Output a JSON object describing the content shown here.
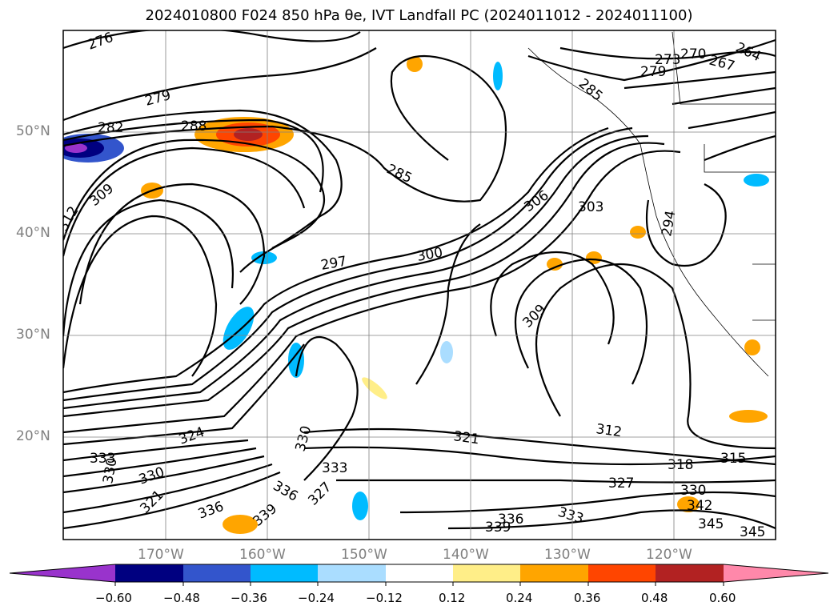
{
  "title": "2024010800 F024 850 hPa θe, IVT Landfall PC (2024011012 - 2024011100)",
  "lat_labels": [
    "50°N",
    "40°N",
    "30°N",
    "20°N"
  ],
  "lon_labels": [
    "170°W",
    "160°W",
    "150°W",
    "140°W",
    "130°W",
    "120°W"
  ],
  "colorbar": {
    "ticks": [
      "−0.60",
      "−0.48",
      "−0.36",
      "−0.24",
      "−0.12",
      "0.12",
      "0.24",
      "0.36",
      "0.48",
      "0.60"
    ],
    "colors": [
      "#9933cc",
      "#000080",
      "#3355cc",
      "#00bbff",
      "#aaddff",
      "#ffffff",
      "#ffee88",
      "#ffa500",
      "#ff4500",
      "#b22222",
      "#ff88aa"
    ]
  },
  "contour_labels": [
    "276",
    "279",
    "282",
    "288",
    "285",
    "309",
    "312",
    "297",
    "300",
    "306",
    "303",
    "294",
    "273",
    "270",
    "267",
    "264",
    "279",
    "285",
    "309",
    "312",
    "318",
    "315",
    "321",
    "327",
    "330",
    "333",
    "336",
    "339",
    "342",
    "345",
    "345",
    "333",
    "330",
    "327",
    "336",
    "339",
    "336",
    "324",
    "321",
    "330",
    "333",
    "330"
  ]
}
